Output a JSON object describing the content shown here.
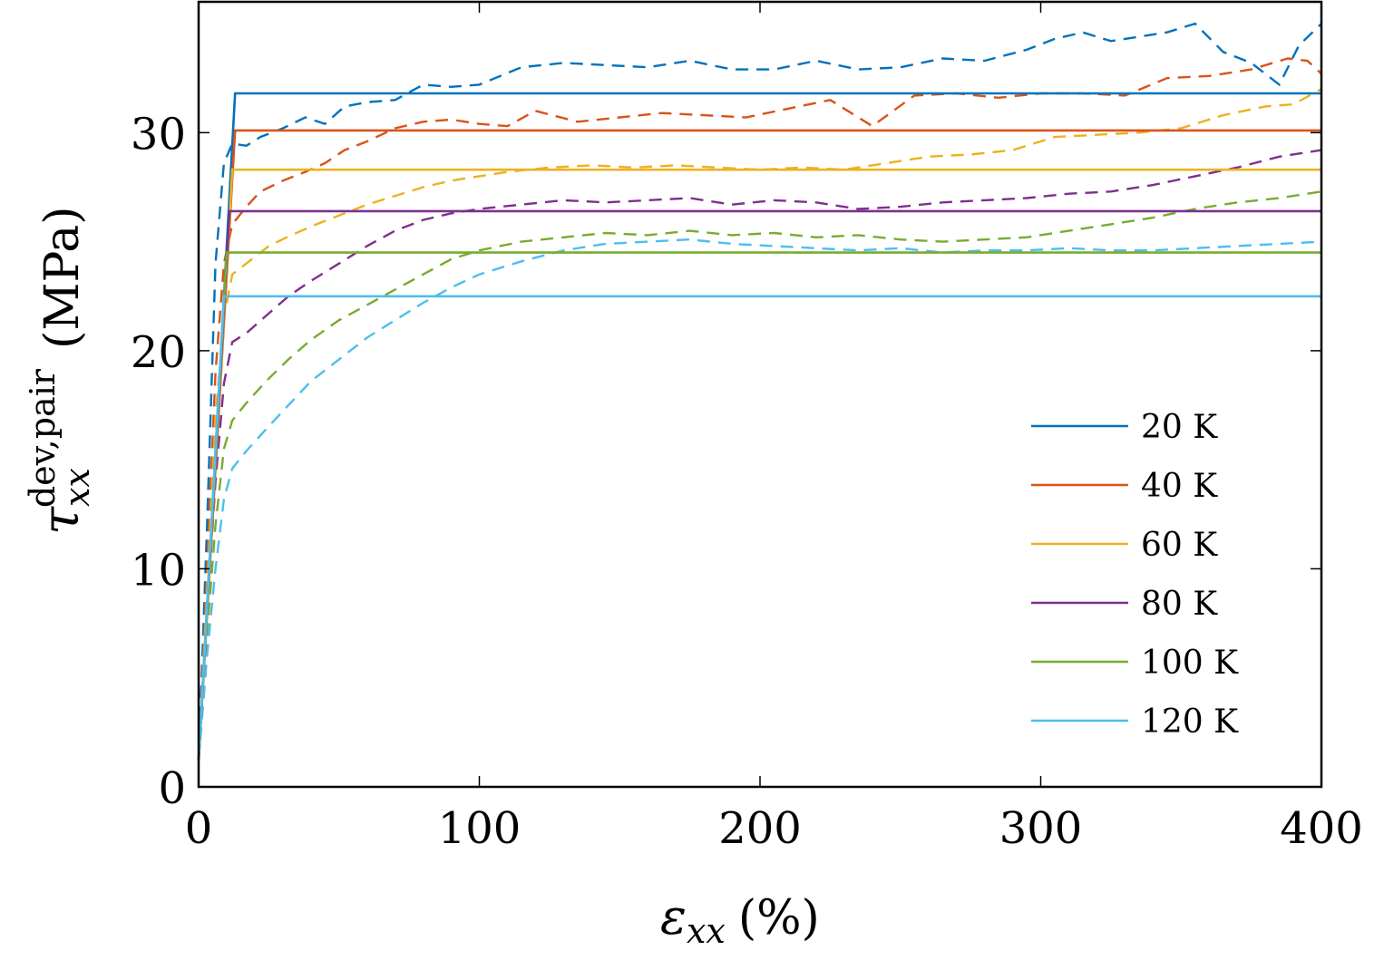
{
  "chart_data": {
    "type": "line",
    "xlabel": {
      "symbol": "ε",
      "subscript": "xx",
      "unit": "(%)"
    },
    "ylabel": {
      "symbol": "τ",
      "subscript": "xx",
      "superscript": "dev,pair",
      "unit": "(MPa)"
    },
    "xlim": [
      0,
      400
    ],
    "ylim": [
      0,
      36
    ],
    "xticks": [
      0,
      100,
      200,
      300,
      400
    ],
    "yticks": [
      0,
      10,
      20,
      30
    ],
    "grid": false,
    "legend_position": "bottom-right",
    "series": [
      {
        "name": "20 K",
        "color": "#0072bd",
        "fit": [
          [
            0,
            1.2
          ],
          [
            13,
            31.8
          ],
          [
            400,
            31.8
          ]
        ],
        "simulation": [
          [
            0,
            1.2
          ],
          [
            3,
            12
          ],
          [
            6,
            24
          ],
          [
            9,
            28.6
          ],
          [
            12,
            29.5
          ],
          [
            17,
            29.4
          ],
          [
            22,
            29.8
          ],
          [
            30,
            30.2
          ],
          [
            38,
            30.7
          ],
          [
            45,
            30.4
          ],
          [
            52,
            31.2
          ],
          [
            60,
            31.4
          ],
          [
            70,
            31.5
          ],
          [
            80,
            32.2
          ],
          [
            90,
            32.1
          ],
          [
            100,
            32.2
          ],
          [
            115,
            33.0
          ],
          [
            130,
            33.2
          ],
          [
            145,
            33.1
          ],
          [
            160,
            33.0
          ],
          [
            175,
            33.3
          ],
          [
            190,
            32.9
          ],
          [
            205,
            32.9
          ],
          [
            220,
            33.3
          ],
          [
            235,
            32.9
          ],
          [
            250,
            33.0
          ],
          [
            265,
            33.4
          ],
          [
            280,
            33.3
          ],
          [
            295,
            33.8
          ],
          [
            305,
            34.3
          ],
          [
            315,
            34.6
          ],
          [
            325,
            34.2
          ],
          [
            335,
            34.4
          ],
          [
            345,
            34.6
          ],
          [
            355,
            35.0
          ],
          [
            365,
            33.7
          ],
          [
            375,
            33.2
          ],
          [
            385,
            32.2
          ],
          [
            392,
            34.0
          ],
          [
            400,
            35.0
          ]
        ]
      },
      {
        "name": "40 K",
        "color": "#d95319",
        "fit": [
          [
            0,
            1.2
          ],
          [
            13,
            30.1
          ],
          [
            400,
            30.1
          ]
        ],
        "simulation": [
          [
            0,
            1.2
          ],
          [
            3,
            10
          ],
          [
            6,
            19
          ],
          [
            9,
            24
          ],
          [
            12,
            25.8
          ],
          [
            17,
            26.6
          ],
          [
            22,
            27.3
          ],
          [
            30,
            27.8
          ],
          [
            38,
            28.2
          ],
          [
            45,
            28.6
          ],
          [
            52,
            29.2
          ],
          [
            60,
            29.6
          ],
          [
            70,
            30.2
          ],
          [
            80,
            30.5
          ],
          [
            90,
            30.6
          ],
          [
            100,
            30.4
          ],
          [
            110,
            30.3
          ],
          [
            120,
            31.0
          ],
          [
            135,
            30.5
          ],
          [
            150,
            30.7
          ],
          [
            165,
            30.9
          ],
          [
            180,
            30.8
          ],
          [
            195,
            30.7
          ],
          [
            210,
            31.1
          ],
          [
            225,
            31.5
          ],
          [
            240,
            30.3
          ],
          [
            255,
            31.7
          ],
          [
            270,
            31.8
          ],
          [
            285,
            31.6
          ],
          [
            300,
            31.8
          ],
          [
            315,
            31.8
          ],
          [
            330,
            31.7
          ],
          [
            345,
            32.5
          ],
          [
            360,
            32.6
          ],
          [
            375,
            32.9
          ],
          [
            388,
            33.4
          ],
          [
            395,
            33.3
          ],
          [
            400,
            32.7
          ]
        ]
      },
      {
        "name": "60 K",
        "color": "#edb120",
        "fit": [
          [
            0,
            1.2
          ],
          [
            12,
            28.3
          ],
          [
            400,
            28.3
          ]
        ],
        "simulation": [
          [
            0,
            1.2
          ],
          [
            3,
            9
          ],
          [
            6,
            17
          ],
          [
            9,
            21.5
          ],
          [
            12,
            23.5
          ],
          [
            17,
            24.0
          ],
          [
            25,
            24.8
          ],
          [
            33,
            25.3
          ],
          [
            42,
            25.8
          ],
          [
            50,
            26.2
          ],
          [
            60,
            26.7
          ],
          [
            70,
            27.1
          ],
          [
            80,
            27.5
          ],
          [
            90,
            27.8
          ],
          [
            100,
            28.0
          ],
          [
            110,
            28.2
          ],
          [
            125,
            28.4
          ],
          [
            140,
            28.5
          ],
          [
            155,
            28.4
          ],
          [
            170,
            28.5
          ],
          [
            185,
            28.4
          ],
          [
            200,
            28.3
          ],
          [
            215,
            28.4
          ],
          [
            230,
            28.3
          ],
          [
            245,
            28.6
          ],
          [
            260,
            28.9
          ],
          [
            275,
            29.0
          ],
          [
            290,
            29.2
          ],
          [
            305,
            29.8
          ],
          [
            320,
            29.9
          ],
          [
            335,
            30.0
          ],
          [
            350,
            30.2
          ],
          [
            365,
            30.8
          ],
          [
            380,
            31.2
          ],
          [
            390,
            31.3
          ],
          [
            400,
            32.0
          ]
        ]
      },
      {
        "name": "80 K",
        "color": "#7e2f8e",
        "fit": [
          [
            0,
            1.2
          ],
          [
            11,
            26.4
          ],
          [
            400,
            26.4
          ]
        ],
        "simulation": [
          [
            0,
            1.2
          ],
          [
            3,
            8
          ],
          [
            6,
            14
          ],
          [
            9,
            18.5
          ],
          [
            12,
            20.4
          ],
          [
            17,
            20.8
          ],
          [
            24,
            21.6
          ],
          [
            32,
            22.5
          ],
          [
            40,
            23.2
          ],
          [
            50,
            24.0
          ],
          [
            60,
            24.8
          ],
          [
            70,
            25.5
          ],
          [
            80,
            26.0
          ],
          [
            90,
            26.3
          ],
          [
            100,
            26.5
          ],
          [
            115,
            26.7
          ],
          [
            130,
            26.9
          ],
          [
            145,
            26.8
          ],
          [
            160,
            26.9
          ],
          [
            175,
            27.0
          ],
          [
            190,
            26.7
          ],
          [
            205,
            26.9
          ],
          [
            220,
            26.8
          ],
          [
            235,
            26.5
          ],
          [
            250,
            26.6
          ],
          [
            265,
            26.8
          ],
          [
            280,
            26.9
          ],
          [
            295,
            27.0
          ],
          [
            310,
            27.2
          ],
          [
            325,
            27.3
          ],
          [
            340,
            27.6
          ],
          [
            355,
            28.0
          ],
          [
            370,
            28.4
          ],
          [
            385,
            28.9
          ],
          [
            400,
            29.2
          ]
        ]
      },
      {
        "name": "100 K",
        "color": "#77ac30",
        "fit": [
          [
            0,
            1.2
          ],
          [
            10,
            24.5
          ],
          [
            400,
            24.5
          ]
        ],
        "simulation": [
          [
            0,
            1.2
          ],
          [
            3,
            7
          ],
          [
            6,
            12
          ],
          [
            9,
            15.5
          ],
          [
            12,
            16.8
          ],
          [
            17,
            17.6
          ],
          [
            24,
            18.6
          ],
          [
            32,
            19.6
          ],
          [
            40,
            20.5
          ],
          [
            50,
            21.4
          ],
          [
            60,
            22.1
          ],
          [
            70,
            22.8
          ],
          [
            80,
            23.5
          ],
          [
            90,
            24.2
          ],
          [
            100,
            24.6
          ],
          [
            115,
            25.0
          ],
          [
            130,
            25.2
          ],
          [
            145,
            25.4
          ],
          [
            160,
            25.3
          ],
          [
            175,
            25.5
          ],
          [
            190,
            25.3
          ],
          [
            205,
            25.4
          ],
          [
            220,
            25.2
          ],
          [
            235,
            25.3
          ],
          [
            250,
            25.1
          ],
          [
            265,
            25.0
          ],
          [
            280,
            25.1
          ],
          [
            295,
            25.2
          ],
          [
            310,
            25.5
          ],
          [
            325,
            25.8
          ],
          [
            340,
            26.1
          ],
          [
            355,
            26.5
          ],
          [
            370,
            26.8
          ],
          [
            385,
            27.0
          ],
          [
            400,
            27.3
          ]
        ]
      },
      {
        "name": "120 K",
        "color": "#4dbeee",
        "fit": [
          [
            0,
            1.2
          ],
          [
            9,
            22.5
          ],
          [
            400,
            22.5
          ]
        ],
        "simulation": [
          [
            0,
            1.2
          ],
          [
            3,
            6
          ],
          [
            6,
            10
          ],
          [
            9,
            13.2
          ],
          [
            12,
            14.6
          ],
          [
            17,
            15.4
          ],
          [
            24,
            16.4
          ],
          [
            32,
            17.5
          ],
          [
            40,
            18.6
          ],
          [
            50,
            19.6
          ],
          [
            60,
            20.6
          ],
          [
            70,
            21.4
          ],
          [
            80,
            22.2
          ],
          [
            90,
            22.9
          ],
          [
            100,
            23.5
          ],
          [
            115,
            24.1
          ],
          [
            130,
            24.6
          ],
          [
            145,
            24.9
          ],
          [
            160,
            25.0
          ],
          [
            175,
            25.1
          ],
          [
            190,
            24.9
          ],
          [
            205,
            24.8
          ],
          [
            220,
            24.7
          ],
          [
            235,
            24.6
          ],
          [
            250,
            24.7
          ],
          [
            265,
            24.5
          ],
          [
            280,
            24.6
          ],
          [
            295,
            24.6
          ],
          [
            310,
            24.7
          ],
          [
            325,
            24.6
          ],
          [
            340,
            24.6
          ],
          [
            355,
            24.7
          ],
          [
            370,
            24.8
          ],
          [
            385,
            24.9
          ],
          [
            400,
            25.0
          ]
        ]
      }
    ]
  }
}
